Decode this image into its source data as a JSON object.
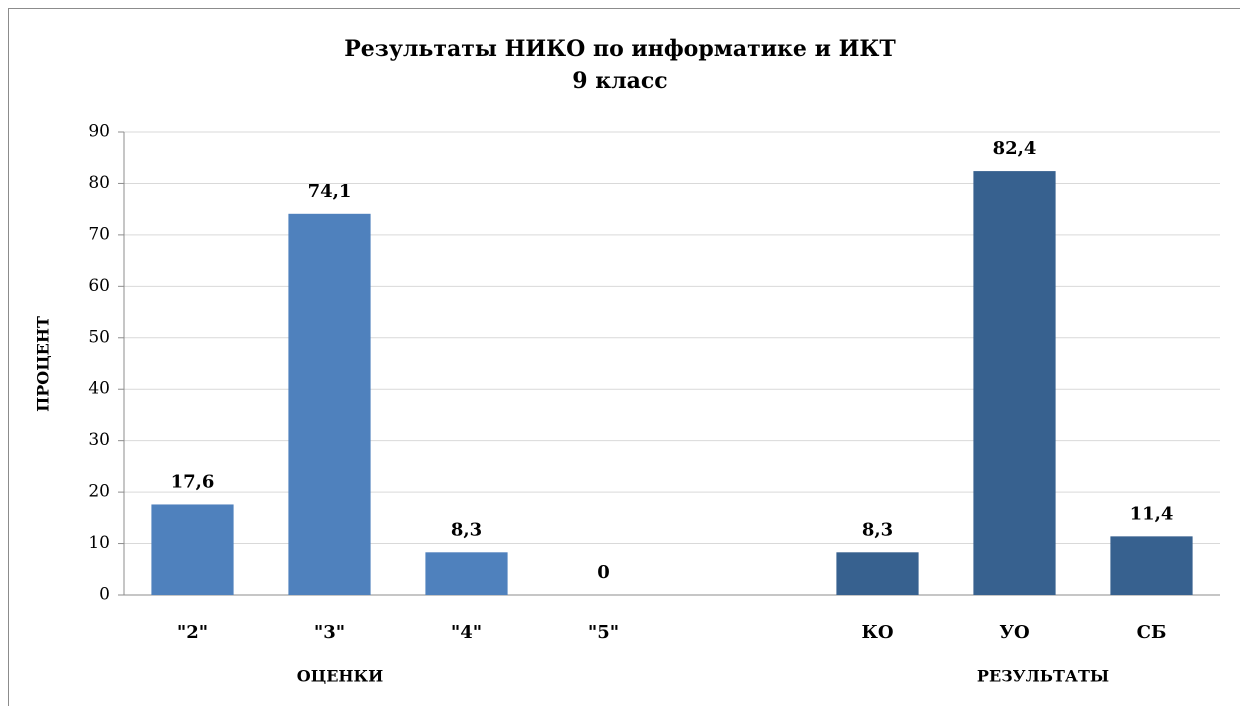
{
  "chart_data": {
    "type": "bar",
    "title": [
      "Результаты НИКО по информатике и ИКТ",
      "9 класс"
    ],
    "y_label": "ПРОЦЕНТ",
    "group_labels": [
      "ОЦЕНКИ",
      "РЕЗУЛЬТАТЫ"
    ],
    "categories": [
      "\"2\"",
      "\"3\"",
      "\"4\"",
      "\"5\"",
      null,
      "КО",
      "УО",
      "СБ"
    ],
    "values": [
      17.6,
      74.1,
      8.3,
      0,
      null,
      8.3,
      82.4,
      11.4
    ],
    "value_labels": [
      "17,6",
      "74,1",
      "8,3",
      "0",
      null,
      "8,3",
      "82,4",
      "11,4"
    ],
    "colors": [
      "#4f81bd",
      "#4f81bd",
      "#4f81bd",
      "#4f81bd",
      null,
      "#37618f",
      "#37618f",
      "#37618f"
    ],
    "ylim": [
      0,
      90
    ],
    "yticks": [
      0,
      10,
      20,
      30,
      40,
      50,
      60,
      70,
      80,
      90
    ],
    "grid": true
  }
}
